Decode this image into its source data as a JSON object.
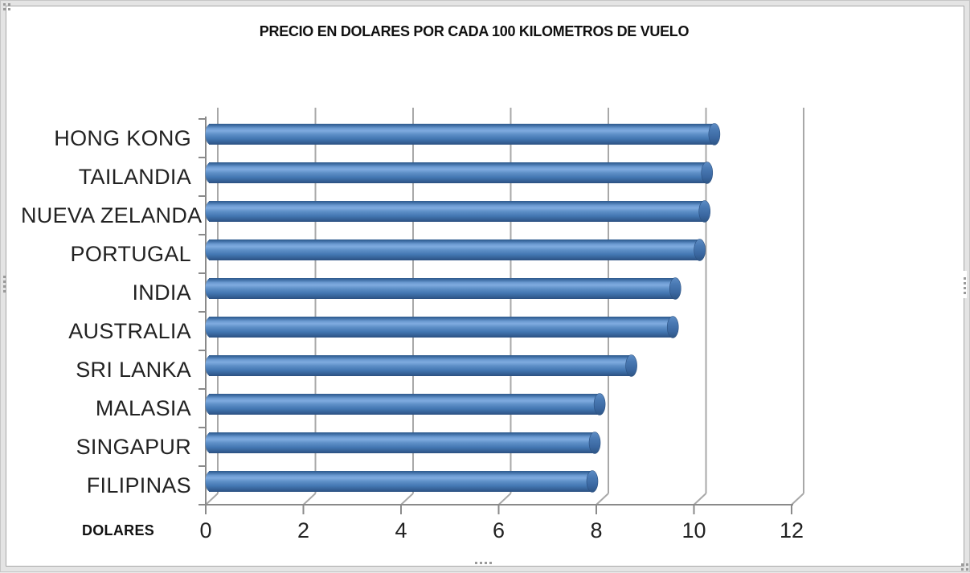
{
  "window": {
    "canvas_color": "#ffffff",
    "frame_band_color": "#e4e4e4",
    "frame_line_color": "#a8a8a8",
    "selection_handles": [
      "top-left",
      "left-middle",
      "right-middle",
      "bottom-middle",
      "bottom-right"
    ]
  },
  "chart_data": {
    "type": "bar",
    "orientation": "horizontal",
    "style": "3d-cylinder",
    "title": "PRECIO EN DOLARES POR CADA 100 KILOMETROS DE VUELO",
    "xlabel": "DOLARES",
    "ylabel": "",
    "categories": [
      "HONG KONG",
      "TAILANDIA",
      "NUEVA ZELANDA",
      "PORTUGAL",
      "INDIA",
      "AUSTRALIA",
      "SRI LANKA",
      "MALASIA",
      "SINGAPUR",
      "FILIPINAS"
    ],
    "values": [
      10.5,
      10.35,
      10.3,
      10.2,
      9.7,
      9.65,
      8.8,
      8.15,
      8.05,
      8.0
    ],
    "xlim": [
      0,
      12
    ],
    "xticks": [
      0,
      2,
      4,
      6,
      8,
      10,
      12
    ],
    "grid": true,
    "legend": "none",
    "bar_color": "#4f81bd",
    "bar_highlight_color": "#7fabdf",
    "bar_shadow_color": "#2b5080",
    "gridline_color": "#a8a8a8",
    "axis_color": "#8a8a8a",
    "text_color": "#222222"
  }
}
